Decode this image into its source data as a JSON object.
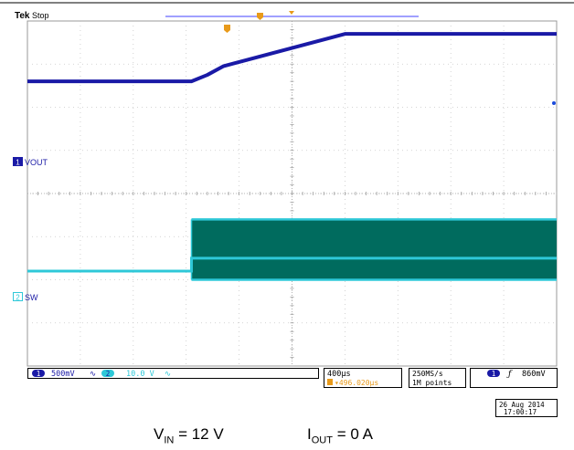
{
  "header": {
    "brand": "Tek",
    "state": "Stop"
  },
  "channels": [
    {
      "id": "1",
      "name": "VOUT",
      "scale": "500mV",
      "color": "#1a1aa6"
    },
    {
      "id": "2",
      "name": "SW",
      "scale": "10.0 V",
      "color": "#2ec8d8"
    }
  ],
  "coupling_glyph": "∿",
  "bw_glyph": "⁺",
  "fill_color": "#006b5e",
  "timebase": {
    "scale": "400µs",
    "position": "▾496.020µs"
  },
  "acquisition": {
    "rate": "250MS/s",
    "points": "1M points"
  },
  "trigger": {
    "channel": "1",
    "slope_glyph": "ƒ",
    "level": "860mV"
  },
  "timestamp": {
    "date": "26 Aug 2014",
    "time": "17:00:17"
  },
  "captions": {
    "vin": {
      "main": "V",
      "sub": "IN",
      "rest": " = 12 V"
    },
    "iout": {
      "main": "I",
      "sub": "OUT",
      "rest": " = 0 A"
    }
  },
  "chart_data": {
    "type": "line",
    "x_divisions": 10,
    "y_divisions": 8,
    "series": [
      {
        "name": "VOUT",
        "channel": "1",
        "x": [
          0,
          3.1,
          3.4,
          3.7,
          4.0,
          6.0,
          10.0
        ],
        "y": [
          6.6,
          6.6,
          6.75,
          6.95,
          7.05,
          7.7,
          7.7
        ]
      },
      {
        "name": "SW",
        "channel": "2",
        "x": [
          0,
          3.1,
          3.1,
          10.0
        ],
        "y": [
          2.2,
          2.2,
          2.5,
          2.5
        ],
        "switching_band_divisions": [
          2.0,
          3.4
        ]
      }
    ]
  }
}
